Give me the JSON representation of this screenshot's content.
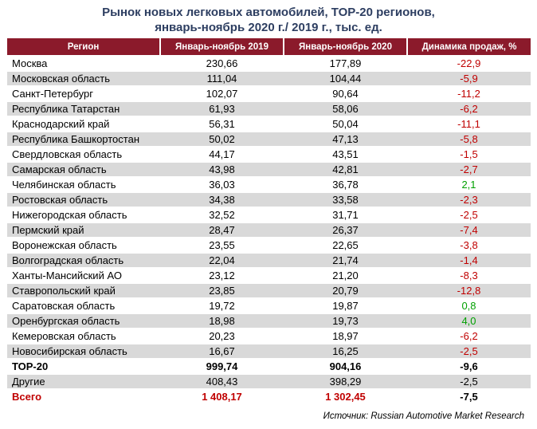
{
  "title_line1": "Рынок новых легковых автомобилей, ТОР-20 регионов,",
  "title_line2": "январь-ноябрь 2020 г./ 2019 г., тыс. ед.",
  "headers": [
    "Регион",
    "Январь-ноябрь 2019",
    "Январь-ноябрь 2020",
    "Динамика продаж, %"
  ],
  "rows": [
    {
      "region": "Москва",
      "y2019": "230,66",
      "y2020": "177,89",
      "dynamics": "-22,9"
    },
    {
      "region": "Московская область",
      "y2019": "111,04",
      "y2020": "104,44",
      "dynamics": "-5,9"
    },
    {
      "region": "Санкт-Петербург",
      "y2019": "102,07",
      "y2020": "90,64",
      "dynamics": "-11,2"
    },
    {
      "region": "Республика Татарстан",
      "y2019": "61,93",
      "y2020": "58,06",
      "dynamics": "-6,2"
    },
    {
      "region": "Краснодарский край",
      "y2019": "56,31",
      "y2020": "50,04",
      "dynamics": "-11,1"
    },
    {
      "region": "Республика Башкортостан",
      "y2019": "50,02",
      "y2020": "47,13",
      "dynamics": "-5,8"
    },
    {
      "region": "Свердловская область",
      "y2019": "44,17",
      "y2020": "43,51",
      "dynamics": "-1,5"
    },
    {
      "region": "Самарская область",
      "y2019": "43,98",
      "y2020": "42,81",
      "dynamics": "-2,7"
    },
    {
      "region": "Челябинская область",
      "y2019": "36,03",
      "y2020": "36,78",
      "dynamics": "2,1"
    },
    {
      "region": "Ростовская область",
      "y2019": "34,38",
      "y2020": "33,58",
      "dynamics": "-2,3"
    },
    {
      "region": "Нижегородская область",
      "y2019": "32,52",
      "y2020": "31,71",
      "dynamics": "-2,5"
    },
    {
      "region": "Пермский край",
      "y2019": "28,47",
      "y2020": "26,37",
      "dynamics": "-7,4"
    },
    {
      "region": "Воронежская область",
      "y2019": "23,55",
      "y2020": "22,65",
      "dynamics": "-3,8"
    },
    {
      "region": "Волгоградская область",
      "y2019": "22,04",
      "y2020": "21,74",
      "dynamics": "-1,4"
    },
    {
      "region": "Ханты-Мансийский АО",
      "y2019": "23,12",
      "y2020": "21,20",
      "dynamics": "-8,3"
    },
    {
      "region": "Ставропольский край",
      "y2019": "23,85",
      "y2020": "20,79",
      "dynamics": "-12,8"
    },
    {
      "region": "Саратовская область",
      "y2019": "19,72",
      "y2020": "19,87",
      "dynamics": "0,8"
    },
    {
      "region": "Оренбургская область",
      "y2019": "18,98",
      "y2020": "19,73",
      "dynamics": "4,0"
    },
    {
      "region": "Кемеровская область",
      "y2019": "20,23",
      "y2020": "18,97",
      "dynamics": "-6,2"
    },
    {
      "region": "Новосибирская область",
      "y2019": "16,67",
      "y2020": "16,25",
      "dynamics": "-2,5"
    }
  ],
  "top20": {
    "region": "ТОР-20",
    "y2019": "999,74",
    "y2020": "904,16",
    "dynamics": "-9,6"
  },
  "others": {
    "region": "Другие",
    "y2019": "408,43",
    "y2020": "398,29",
    "dynamics": "-2,5"
  },
  "total": {
    "region": "Всего",
    "y2019": "1 408,17",
    "y2020": "1 302,45",
    "dynamics": "-7,5"
  },
  "source": "Источник: Russian Automotive Market Research",
  "colors": {
    "header_bg": "#8b1a2b",
    "title": "#2d3e61",
    "negative": "#c00000",
    "positive": "#00a000",
    "stripe": "#d9d9d9"
  }
}
